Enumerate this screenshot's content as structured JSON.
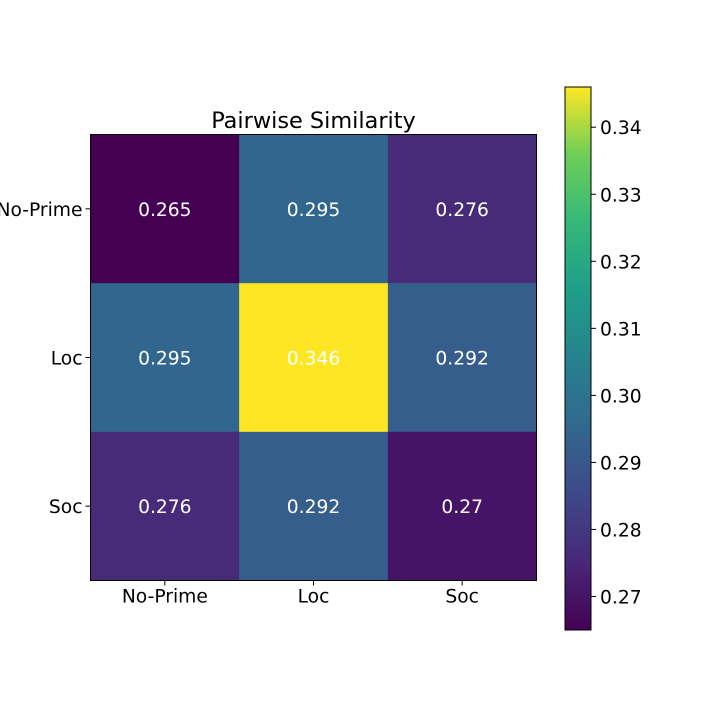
{
  "chart_data": {
    "type": "heatmap",
    "title": "Pairwise Similarity",
    "xlabel": "",
    "ylabel": "",
    "x_categories": [
      "No-Prime",
      "Loc",
      "Soc"
    ],
    "y_categories": [
      "No-Prime",
      "Loc",
      "Soc"
    ],
    "values": [
      [
        0.265,
        0.295,
        0.276
      ],
      [
        0.295,
        0.346,
        0.292
      ],
      [
        0.276,
        0.292,
        0.27
      ]
    ],
    "value_labels": [
      [
        "0.265",
        "0.295",
        "0.276"
      ],
      [
        "0.295",
        "0.346",
        "0.292"
      ],
      [
        "0.276",
        "0.292",
        "0.27"
      ]
    ],
    "colormap": "viridis",
    "color_range": [
      0.265,
      0.346
    ],
    "colorbar_ticks": [
      0.27,
      0.28,
      0.29,
      0.3,
      0.31,
      0.32,
      0.33,
      0.34
    ],
    "colorbar_tick_labels": [
      "0.27",
      "0.28",
      "0.29",
      "0.30",
      "0.31",
      "0.32",
      "0.33",
      "0.34"
    ],
    "value_text_color": "#ffffff"
  }
}
